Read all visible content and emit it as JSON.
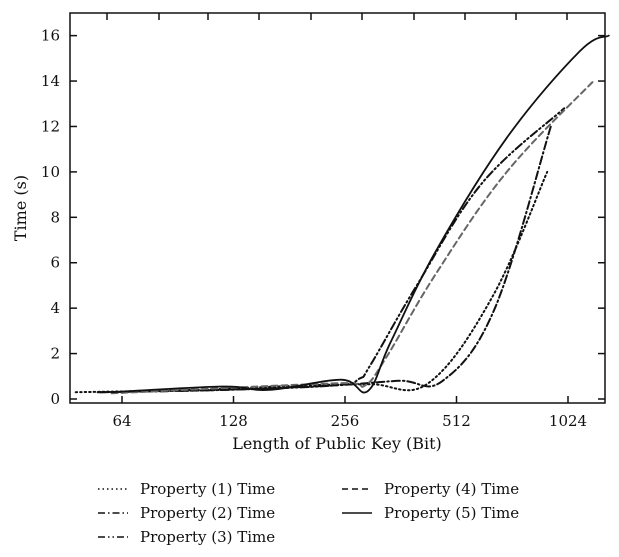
{
  "chart_data": {
    "type": "line",
    "title": "",
    "xlabel": "Length of Public Key (Bit)",
    "ylabel": "Time (s)",
    "x_scale": "log2",
    "categories": [
      "64",
      "128",
      "256",
      "512",
      "1024"
    ],
    "ylim": [
      0,
      17
    ],
    "yticks": [
      "0",
      "2",
      "4",
      "6",
      "8",
      "10",
      "12",
      "14",
      "16"
    ],
    "grid": false,
    "legend_position": "bottom",
    "series": [
      {
        "name": "Property (1) Time",
        "style": "dotted",
        "color": "#111111",
        "points": [
          [
            48,
            0.3
          ],
          [
            100,
            0.4
          ],
          [
            200,
            0.6
          ],
          [
            300,
            0.65
          ],
          [
            430,
            0.7
          ],
          [
            640,
            4.5
          ],
          [
            900,
            10.0
          ]
        ]
      },
      {
        "name": "Property (2) Time",
        "style": "dashdot",
        "color": "#111111",
        "points": [
          [
            55,
            0.3
          ],
          [
            120,
            0.4
          ],
          [
            240,
            0.6
          ],
          [
            360,
            0.8
          ],
          [
            470,
            0.8
          ],
          [
            650,
            4.0
          ],
          [
            920,
            12.0
          ]
        ]
      },
      {
        "name": "Property (3) Time",
        "style": "dashdotdot",
        "color": "#111111",
        "points": [
          [
            56,
            0.3
          ],
          [
            120,
            0.4
          ],
          [
            240,
            0.6
          ],
          [
            280,
            0.9
          ],
          [
            300,
            1.5
          ],
          [
            400,
            5.0
          ],
          [
            600,
            9.5
          ],
          [
            1000,
            12.8
          ]
        ]
      },
      {
        "name": "Property (4) Time",
        "style": "dashed",
        "color": "#666666",
        "points": [
          [
            60,
            0.25
          ],
          [
            128,
            0.5
          ],
          [
            256,
            0.7
          ],
          [
            290,
            0.6
          ],
          [
            330,
            1.8
          ],
          [
            450,
            5.5
          ],
          [
            700,
            10.0
          ],
          [
            1200,
            14.0
          ]
        ]
      },
      {
        "name": "Property (5) Time",
        "style": "solid",
        "color": "#111111",
        "points": [
          [
            60,
            0.3
          ],
          [
            120,
            0.55
          ],
          [
            160,
            0.4
          ],
          [
            250,
            0.85
          ],
          [
            295,
            0.35
          ],
          [
            340,
            2.5
          ],
          [
            450,
            6.5
          ],
          [
            700,
            11.5
          ],
          [
            1100,
            15.3
          ],
          [
            1320,
            16.0
          ]
        ]
      }
    ]
  }
}
